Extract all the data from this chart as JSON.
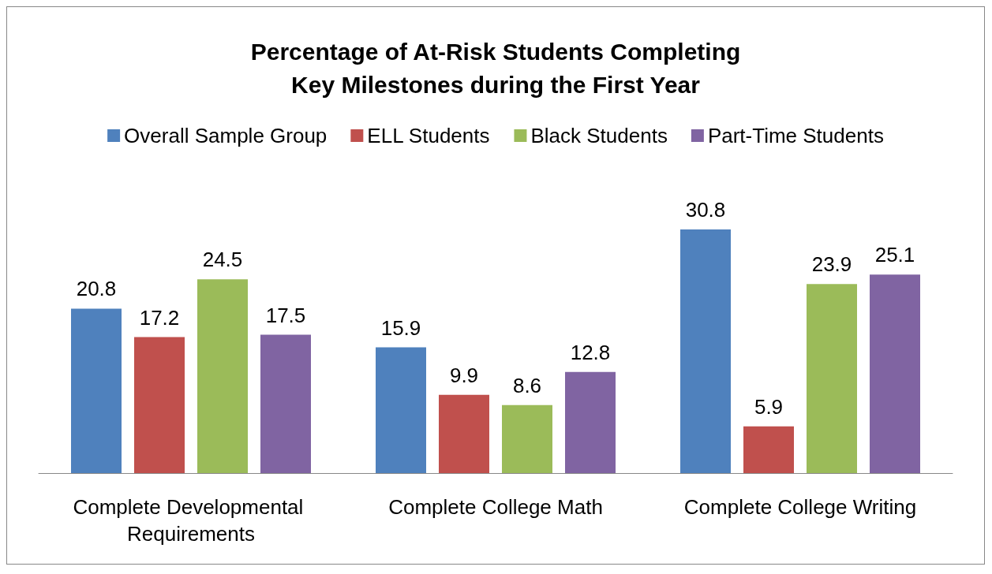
{
  "chart_data": {
    "type": "bar",
    "title": "Percentage of At-Risk Students Completing\nKey Milestones during the First Year",
    "categories": [
      "Complete Developmental Requirements",
      "Complete College Math",
      "Complete College Writing"
    ],
    "series": [
      {
        "name": "Overall Sample Group",
        "color": "#4f81bd",
        "values": [
          20.8,
          15.9,
          30.8
        ]
      },
      {
        "name": "ELL Students",
        "color": "#c0504d",
        "values": [
          17.2,
          9.9,
          5.9
        ]
      },
      {
        "name": "Black Students",
        "color": "#9bbb59",
        "values": [
          24.5,
          8.6,
          23.9
        ]
      },
      {
        "name": "Part-Time Students",
        "color": "#8064a2",
        "values": [
          17.5,
          12.8,
          25.1
        ]
      }
    ],
    "data_labels": true,
    "legend": "top"
  }
}
